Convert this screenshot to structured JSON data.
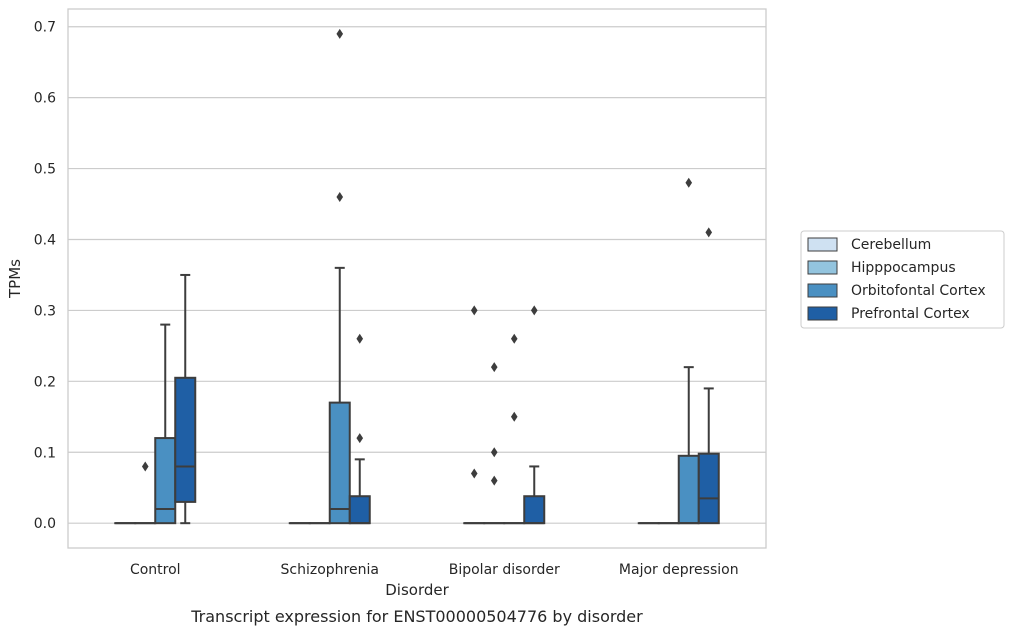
{
  "chart_data": {
    "type": "box",
    "caption": "Transcript expression for ENST00000504776 by disorder",
    "xlabel": "Disorder",
    "ylabel": "TPMs",
    "ylim": [
      -0.035,
      0.725
    ],
    "yticks": [
      "0.0",
      "0.1",
      "0.2",
      "0.3",
      "0.4",
      "0.5",
      "0.6",
      "0.7"
    ],
    "categories": [
      "Control",
      "Schizophrenia",
      "Bipolar disorder",
      "Major depression"
    ],
    "grid": true,
    "legend_position": "right",
    "series": [
      {
        "name": "Cerebellum",
        "color": "#cfe1f2",
        "boxes": [
          {
            "q1": 0,
            "median": 0,
            "q3": 0,
            "whislo": 0,
            "whishi": 0,
            "fliers": []
          },
          {
            "q1": 0,
            "median": 0,
            "q3": 0,
            "whislo": 0,
            "whishi": 0,
            "fliers": []
          },
          {
            "q1": 0,
            "median": 0,
            "q3": 0,
            "whislo": 0,
            "whishi": 0,
            "fliers": [
              0.3,
              0.07
            ]
          },
          {
            "q1": 0,
            "median": 0,
            "q3": 0,
            "whislo": 0,
            "whishi": 0,
            "fliers": []
          }
        ]
      },
      {
        "name": "Hipppocampus",
        "color": "#93c4de",
        "boxes": [
          {
            "q1": 0,
            "median": 0,
            "q3": 0,
            "whislo": 0,
            "whishi": 0,
            "fliers": [
              0.08
            ]
          },
          {
            "q1": 0,
            "median": 0,
            "q3": 0,
            "whislo": 0,
            "whishi": 0,
            "fliers": []
          },
          {
            "q1": 0,
            "median": 0,
            "q3": 0,
            "whislo": 0,
            "whishi": 0,
            "fliers": [
              0.22,
              0.1,
              0.06
            ]
          },
          {
            "q1": 0,
            "median": 0,
            "q3": 0,
            "whislo": 0,
            "whishi": 0,
            "fliers": []
          }
        ]
      },
      {
        "name": "Orbitofontal Cortex",
        "color": "#4a90c2",
        "boxes": [
          {
            "q1": 0,
            "median": 0.02,
            "q3": 0.12,
            "whislo": 0,
            "whishi": 0.28,
            "fliers": []
          },
          {
            "q1": 0,
            "median": 0.02,
            "q3": 0.17,
            "whislo": 0,
            "whishi": 0.36,
            "fliers": [
              0.69,
              0.46
            ]
          },
          {
            "q1": 0,
            "median": 0,
            "q3": 0,
            "whislo": 0,
            "whishi": 0,
            "fliers": [
              0.26,
              0.15
            ]
          },
          {
            "q1": 0,
            "median": 0,
            "q3": 0.095,
            "whislo": 0,
            "whishi": 0.22,
            "fliers": [
              0.48
            ]
          }
        ]
      },
      {
        "name": "Prefrontal Cortex",
        "color": "#1f5fa5",
        "boxes": [
          {
            "q1": 0.03,
            "median": 0.08,
            "q3": 0.205,
            "whislo": 0,
            "whishi": 0.35,
            "fliers": []
          },
          {
            "q1": 0,
            "median": 0,
            "q3": 0.038,
            "whislo": 0,
            "whishi": 0.09,
            "fliers": [
              0.26,
              0.12
            ]
          },
          {
            "q1": 0,
            "median": 0,
            "q3": 0.038,
            "whislo": 0,
            "whishi": 0.08,
            "fliers": [
              0.3
            ]
          },
          {
            "q1": 0,
            "median": 0.035,
            "q3": 0.098,
            "whislo": 0,
            "whishi": 0.19,
            "fliers": [
              0.41
            ]
          }
        ]
      }
    ]
  }
}
